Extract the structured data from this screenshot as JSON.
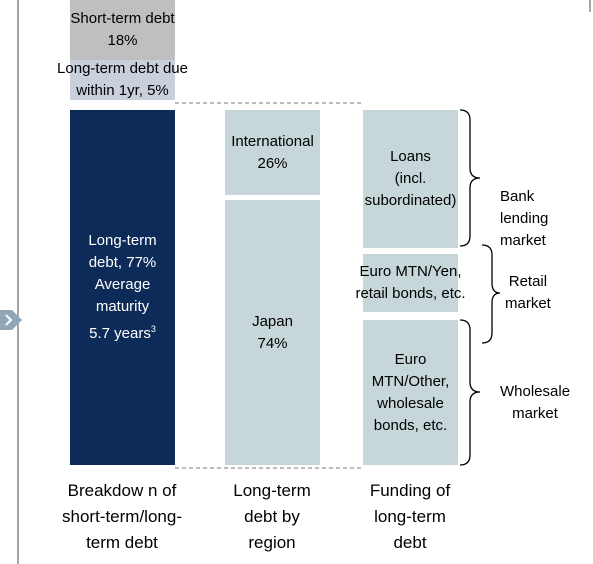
{
  "columns": [
    {
      "blocks": [
        {
          "lines": [
            "Short-term debt",
            "18%"
          ]
        },
        {
          "lines": [
            "Long-term debt due",
            "within 1yr, 5%"
          ]
        },
        {
          "lines": [
            "Long-term",
            "debt, 77%",
            "Average",
            "maturity",
            "5.7 years"
          ],
          "footnote": "3"
        }
      ],
      "caption": [
        "Breakdow n of",
        "short-term/long-",
        "term debt"
      ]
    },
    {
      "blocks": [
        {
          "lines": [
            "International",
            "26%"
          ]
        },
        {
          "lines": [
            "Japan",
            "74%"
          ]
        }
      ],
      "caption": [
        "Long-term",
        "debt by",
        "region"
      ]
    },
    {
      "blocks": [
        {
          "lines": [
            "Loans",
            "(incl.",
            "subordinated)"
          ]
        },
        {
          "lines": [
            "Euro MTN/Yen,",
            "retail bonds, etc."
          ]
        },
        {
          "lines": [
            "Euro",
            "MTN/Other,",
            "wholesale",
            "bonds, etc."
          ]
        }
      ],
      "caption": [
        "Funding of",
        "long-term",
        "debt"
      ]
    }
  ],
  "markets": [
    {
      "lines": [
        "Bank",
        "lending",
        "market"
      ]
    },
    {
      "lines": [
        "Retail",
        "market"
      ]
    },
    {
      "lines": [
        "Wholesale",
        "market"
      ]
    }
  ]
}
